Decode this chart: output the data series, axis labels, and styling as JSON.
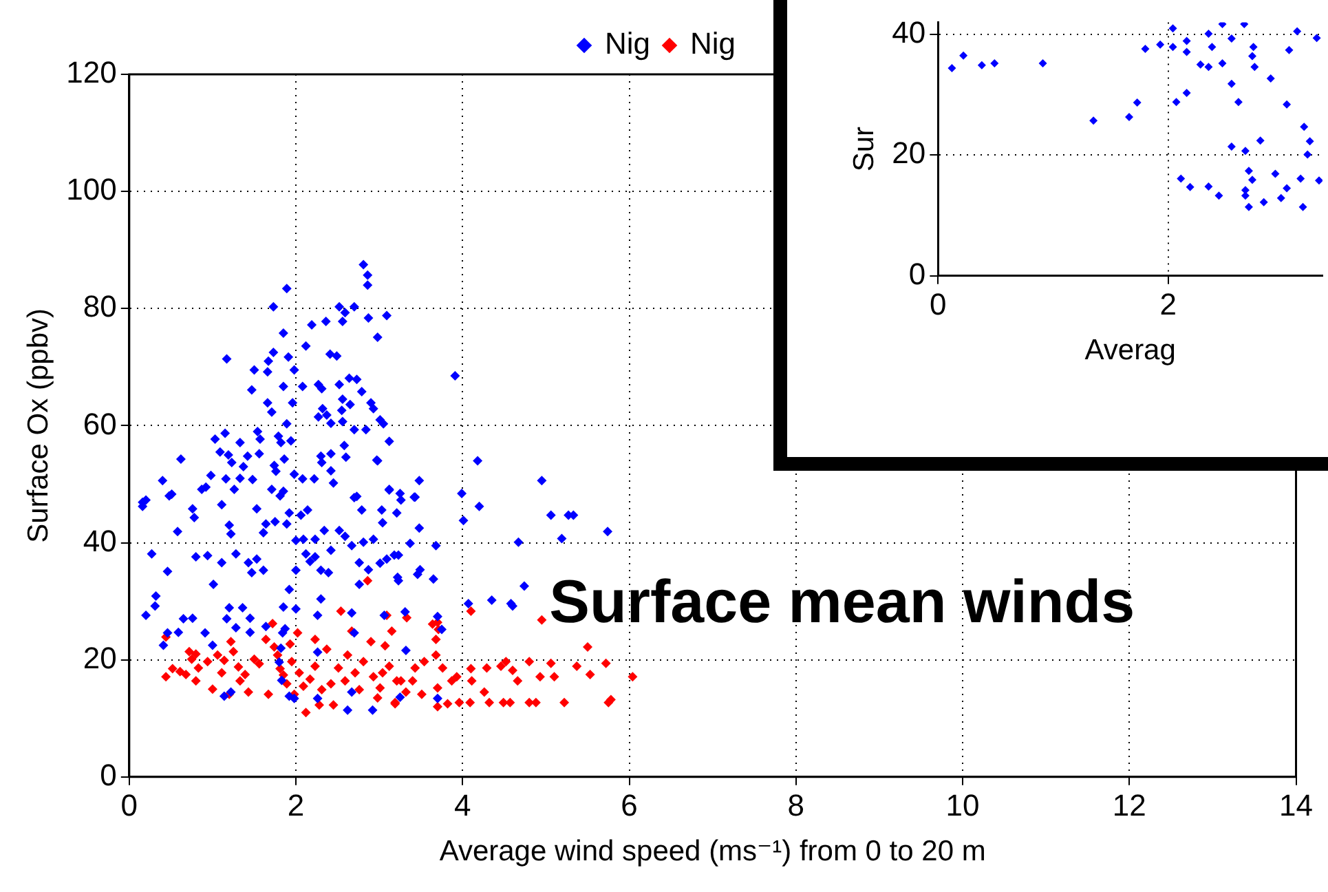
{
  "chart_data": [
    {
      "type": "scatter",
      "xlabel": "Average wind speed (ms⁻¹) from 0 to 20 m",
      "ylabel": "Surface Ox (ppbv)",
      "xlim": [
        0,
        14
      ],
      "ylim": [
        0,
        120
      ],
      "xticks": [
        0,
        2,
        4,
        6,
        8,
        10,
        12,
        14
      ],
      "yticks": [
        0,
        20,
        40,
        60,
        80,
        100,
        120
      ],
      "grid": true,
      "legend": "top",
      "marker": "diamond",
      "annotations": [
        "Surface mean winds"
      ],
      "series": [
        {
          "name": "Nig",
          "color": "#0000ff",
          "x": [
            2.81,
            2.86,
            2.86,
            1.89,
            1.73,
            2.52,
            2.7,
            2.59,
            2.56,
            2.87,
            3.09,
            2.36,
            2.19,
            1.85,
            2.98,
            2.12,
            1.17,
            1.73,
            1.91,
            2.41,
            2.49,
            1.67,
            1.5,
            1.66,
            1.98,
            1.47,
            1.85,
            2.08,
            2.27,
            2.31,
            2.52,
            2.64,
            2.73,
            2.79,
            1.66,
            1.96,
            1.71,
            2.32,
            2.56,
            2.65,
            2.55,
            2.9,
            2.93,
            2.27,
            2.37,
            2.42,
            1.89,
            2.56,
            3.01,
            3.05,
            2.7,
            2.84,
            3.12,
            1.15,
            1.03,
            1.33,
            1.54,
            1.57,
            1.79,
            1.82,
            1.94,
            1.09,
            1.19,
            1.23,
            1.42,
            1.56,
            1.37,
            0.62,
            1.86,
            1.74,
            1.76,
            1.98,
            2.08,
            2.22,
            2.3,
            2.31,
            2.42,
            2.42,
            2.58,
            2.6,
            2.97,
            0.98,
            1.16,
            0.4,
            0.87,
            0.92,
            1.26,
            1.33,
            1.48,
            1.71,
            1.85,
            2.45,
            3.12,
            0.51,
            0.2,
            2.73,
            3.91,
            4.18,
            4.95,
            3.48,
            2.98,
            3.12,
            3.26,
            3.43,
            3.99,
            0.16,
            0.16,
            0.48,
            0.76,
            0.78,
            1.11,
            1.53,
            1.81,
            1.92,
            2.06,
            2.14,
            2.7,
            2.79,
            3.03,
            3.04,
            1.2,
            1.22,
            0.58,
            1.64,
            1.75,
            1.89,
            1.61,
            2.0,
            2.09,
            2.23,
            2.34,
            2.52,
            2.59,
            2.67,
            2.81,
            2.93,
            3.09,
            3.01,
            2.87,
            3.18,
            0.27,
            0.8,
            0.94,
            1.11,
            1.28,
            1.43,
            1.53,
            1.47,
            1.61,
            2.12,
            2.23,
            2.17,
            2.0,
            2.3,
            2.39,
            2.42,
            2.76,
            0.46,
            1.01,
            1.92,
            2.76,
            3.23,
            0.32,
            0.31,
            0.2,
            2.3,
            1.2,
            1.36,
            1.85,
            2.0,
            0.65,
            0.76,
            1.17,
            1.45,
            2.26,
            2.67,
            3.06,
            0.46,
            0.59,
            0.91,
            1.28,
            1.45,
            1.64,
            1.87,
            1.84,
            1.0,
            0.41,
            1.82,
            2.26,
            2.7,
            1.14,
            1.22,
            1.92,
            2.62,
            2.92,
            3.25,
            1.8,
            1.83,
            2.67,
            2.26,
            1.98,
            4.2,
            4.01,
            5.06,
            5.27,
            5.33,
            5.19,
            5.74,
            4.67,
            3.68,
            3.48,
            3.37,
            3.23,
            3.46,
            3.49,
            3.65,
            3.22,
            4.74,
            4.35,
            4.58,
            4.6,
            4.07,
            3.7,
            3.75,
            3.31,
            3.32,
            3.7,
            3.25,
            3.42,
            3.21
          ],
          "values": [
            87.5,
            85.7,
            84.0,
            83.4,
            80.3,
            80.3,
            80.3,
            79.3,
            77.8,
            78.4,
            78.8,
            77.8,
            77.2,
            75.8,
            75.1,
            73.6,
            71.4,
            72.5,
            71.7,
            72.2,
            71.9,
            71.0,
            69.5,
            69.2,
            69.5,
            66.1,
            66.7,
            66.7,
            67.0,
            66.3,
            67.0,
            68.1,
            67.9,
            65.8,
            63.9,
            63.9,
            62.3,
            62.9,
            64.5,
            63.6,
            62.6,
            63.9,
            62.9,
            61.5,
            61.8,
            60.4,
            60.3,
            60.7,
            61.0,
            60.3,
            59.3,
            59.3,
            57.3,
            58.7,
            57.7,
            57.1,
            59.0,
            57.7,
            58.2,
            57.1,
            57.4,
            55.5,
            55.0,
            53.7,
            54.8,
            55.2,
            53.0,
            54.3,
            54.3,
            53.2,
            52.2,
            51.7,
            50.9,
            50.9,
            54.8,
            53.7,
            55.2,
            52.3,
            56.6,
            54.6,
            54.1,
            51.5,
            50.9,
            50.6,
            49.1,
            49.5,
            49.1,
            51.0,
            50.8,
            49.1,
            48.8,
            50.2,
            49.1,
            48.3,
            47.3,
            47.9,
            68.5,
            54.0,
            50.6,
            50.6,
            54.0,
            49.0,
            47.3,
            47.8,
            48.4,
            46.9,
            46.2,
            48.0,
            45.8,
            44.3,
            46.5,
            45.8,
            48.0,
            45.1,
            44.7,
            45.6,
            47.7,
            45.6,
            45.6,
            43.4,
            43.0,
            41.5,
            41.9,
            43.2,
            43.6,
            43.2,
            41.7,
            40.4,
            40.6,
            40.6,
            42.1,
            42.1,
            41.1,
            39.5,
            40.1,
            40.6,
            37.2,
            36.5,
            35.4,
            37.9,
            38.1,
            37.6,
            37.8,
            36.6,
            38.1,
            36.6,
            37.2,
            34.9,
            35.3,
            38.1,
            37.6,
            36.8,
            35.3,
            35.3,
            34.9,
            38.7,
            36.6,
            35.1,
            32.9,
            32.0,
            32.9,
            33.5,
            30.9,
            29.2,
            27.6,
            30.4,
            28.9,
            28.9,
            29.0,
            28.7,
            27.0,
            27.1,
            27.0,
            27.1,
            27.6,
            28.0,
            27.6,
            24.6,
            24.7,
            24.6,
            25.5,
            24.7,
            25.7,
            25.3,
            24.6,
            22.5,
            22.5,
            22.0,
            21.3,
            24.6,
            13.8,
            14.5,
            13.8,
            11.4,
            11.4,
            13.6,
            19.6,
            16.5,
            14.5,
            13.4,
            13.4,
            46.2,
            43.8,
            44.7,
            44.7,
            44.7,
            40.7,
            41.9,
            40.1,
            39.5,
            42.5,
            39.9,
            37.9,
            34.6,
            35.4,
            33.8,
            34.1,
            32.6,
            30.2,
            29.6,
            29.2,
            29.6,
            27.4,
            25.2,
            28.2,
            21.6,
            13.4,
            48.4,
            47.8,
            45.1
          ]
        },
        {
          "name": "Nig",
          "color": "#ff0000",
          "x": [
            0.44,
            0.44,
            0.52,
            0.61,
            0.72,
            0.75,
            0.8,
            0.68,
            0.83,
            1.0,
            0.94,
            1.06,
            1.14,
            1.11,
            1.22,
            1.25,
            1.31,
            1.33,
            1.39,
            1.43,
            1.5,
            1.56,
            1.64,
            1.72,
            1.74,
            1.78,
            1.81,
            1.85,
            1.89,
            1.93,
            1.95,
            2.02,
            2.04,
            2.09,
            2.12,
            2.17,
            2.23,
            2.23,
            2.31,
            2.37,
            2.42,
            2.51,
            2.54,
            2.59,
            2.62,
            2.67,
            2.71,
            2.76,
            2.81,
            2.86,
            2.9,
            2.93,
            3.01,
            3.07,
            3.09,
            3.12,
            3.15,
            3.19,
            3.26,
            0.8,
            1.2,
            1.67,
            1.98,
            2.28,
            2.45,
            2.98,
            3.33,
            3.64,
            3.7,
            3.68,
            4.1,
            3.71,
            4.95,
            5.5,
            3.54,
            3.68,
            3.76,
            3.93,
            4.1,
            4.29,
            4.46,
            4.52,
            4.6,
            4.66,
            4.8,
            4.93,
            5.06,
            5.1,
            5.37,
            5.53,
            5.72,
            6.04,
            3.21,
            3.4,
            3.7,
            3.87,
            4.11,
            4.26,
            4.32,
            4.49,
            4.57,
            4.8,
            4.88,
            5.22,
            5.75,
            5.78,
            3.19,
            3.7,
            3.82,
            3.96,
            4.09,
            3.32,
            3.51,
            3.04,
            3.43
          ],
          "values": [
            23.9,
            17.1,
            18.5,
            18.0,
            21.4,
            20.1,
            21.0,
            17.5,
            18.6,
            15.0,
            19.7,
            20.8,
            19.9,
            17.8,
            23.1,
            21.4,
            18.8,
            16.4,
            17.5,
            14.5,
            20.1,
            19.3,
            23.5,
            26.2,
            22.2,
            20.8,
            18.5,
            17.4,
            15.9,
            22.7,
            19.7,
            24.6,
            17.8,
            15.5,
            11.0,
            16.7,
            23.5,
            18.9,
            14.9,
            21.8,
            15.9,
            18.6,
            28.3,
            16.4,
            20.8,
            24.9,
            17.8,
            14.9,
            19.7,
            33.5,
            23.1,
            17.1,
            15.2,
            22.4,
            27.6,
            18.9,
            24.9,
            12.5,
            16.4,
            16.4,
            14.1,
            14.1,
            14.1,
            12.3,
            12.3,
            13.5,
            27.2,
            26.1,
            26.4,
            23.5,
            28.3,
            25.2,
            26.8,
            22.2,
            19.7,
            20.8,
            18.6,
            17.1,
            18.5,
            18.6,
            18.9,
            19.7,
            18.2,
            16.4,
            19.7,
            17.1,
            19.4,
            17.1,
            18.9,
            17.5,
            19.4,
            17.1,
            16.4,
            16.4,
            15.2,
            16.4,
            16.4,
            14.5,
            12.7,
            12.7,
            12.7,
            12.7,
            12.7,
            12.7,
            12.7,
            13.2,
            12.7,
            12.0,
            12.5,
            12.7,
            12.7,
            14.5,
            14.1,
            17.8,
            18.6
          ]
        }
      ]
    },
    {
      "type": "scatter",
      "xlabel": "Averag",
      "ylabel": "Sur",
      "xlim": [
        0,
        3.34
      ],
      "ylim": [
        0,
        42
      ],
      "xticks": [
        0,
        2
      ],
      "yticks": [
        0,
        20,
        40
      ],
      "grid": true,
      "marker": "diamond",
      "series": [
        {
          "color": "#0000ff",
          "x": [
            0.12,
            0.22,
            0.38,
            0.49,
            0.91,
            1.35,
            1.66,
            1.73,
            1.8,
            1.93,
            2.04,
            2.04,
            2.16,
            2.16,
            2.07,
            2.16,
            2.35,
            2.38,
            2.28,
            2.35,
            2.47,
            2.55,
            2.55,
            2.61,
            2.66,
            2.74,
            2.73,
            2.75,
            2.89,
            3.03,
            3.05,
            3.12,
            3.29,
            3.18,
            3.23,
            3.21,
            2.8,
            2.55,
            2.67,
            2.11,
            2.19,
            2.35,
            2.44,
            2.7,
            2.73,
            2.93,
            2.67,
            2.67,
            2.7,
            2.83,
            2.98,
            3.03,
            3.15,
            3.17,
            3.31,
            2.47
          ],
          "values": [
            34.4,
            36.5,
            34.9,
            35.2,
            35.2,
            25.7,
            26.3,
            28.7,
            37.6,
            38.3,
            37.9,
            41.0,
            38.9,
            37.1,
            28.8,
            30.3,
            40.1,
            37.9,
            35.0,
            34.6,
            35.2,
            39.3,
            31.8,
            28.8,
            41.7,
            37.9,
            36.4,
            34.6,
            32.7,
            28.4,
            37.4,
            40.5,
            39.4,
            24.7,
            22.3,
            20.1,
            22.4,
            21.4,
            20.7,
            16.1,
            14.7,
            14.8,
            13.3,
            17.4,
            15.9,
            16.9,
            14.2,
            13.3,
            11.4,
            12.2,
            12.9,
            14.5,
            16.1,
            11.4,
            15.8,
            41.7
          ]
        }
      ]
    }
  ]
}
